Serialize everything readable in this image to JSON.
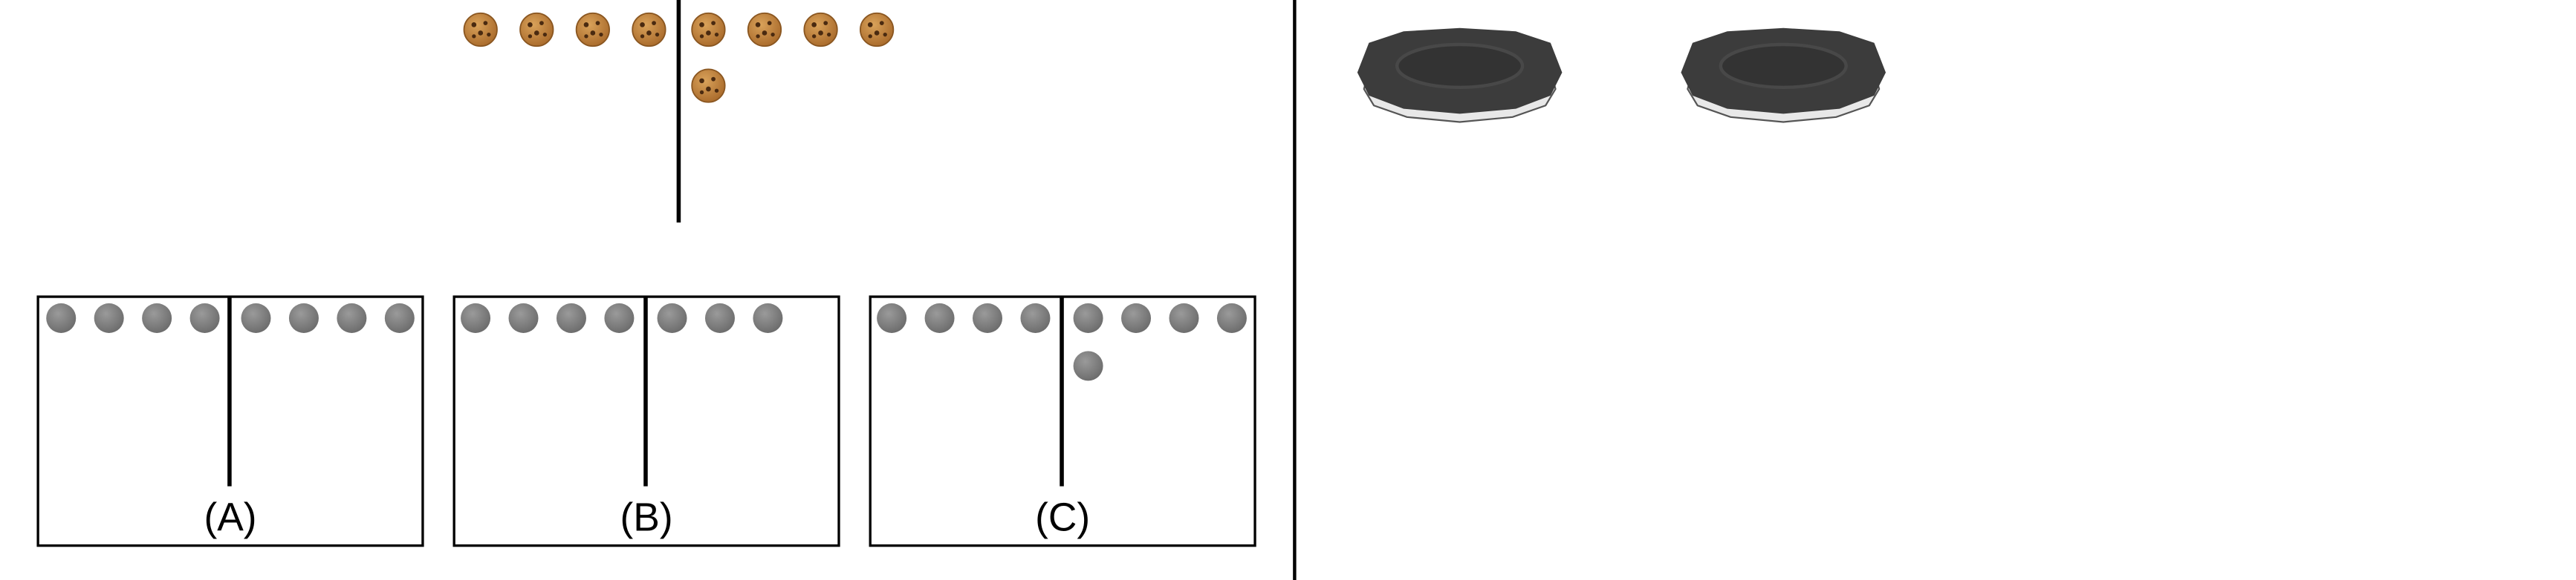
{
  "options": [
    {
      "label": "(A)"
    },
    {
      "label": "(B)"
    },
    {
      "label": "(C)"
    }
  ]
}
